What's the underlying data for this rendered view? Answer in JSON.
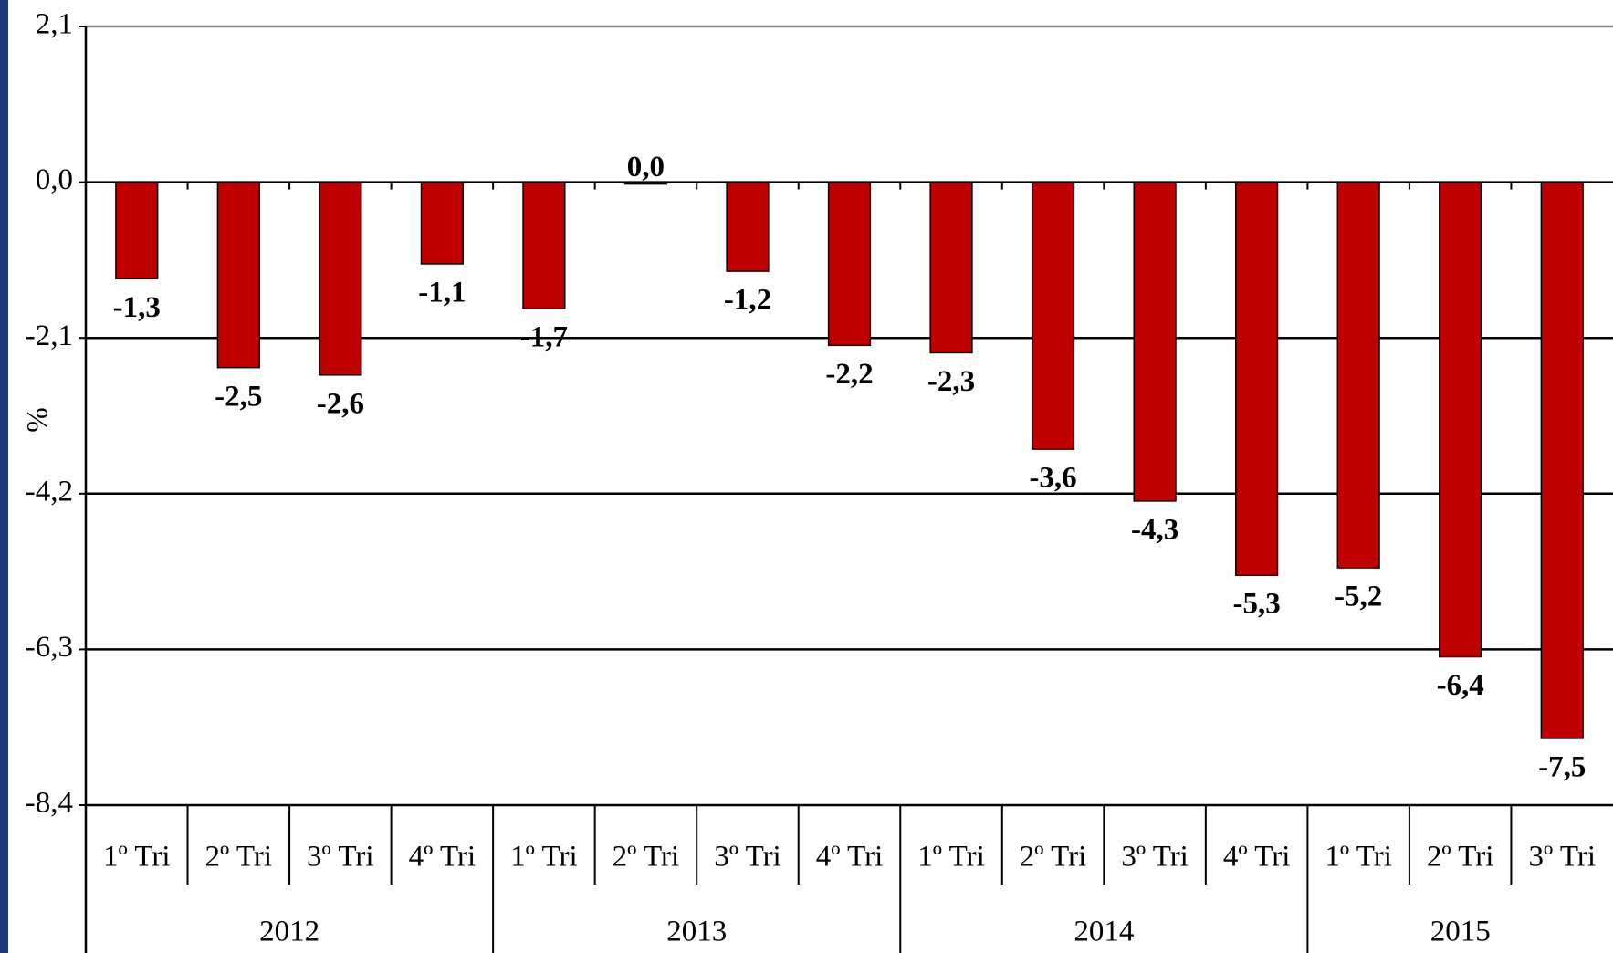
{
  "chart_data": {
    "type": "bar",
    "y_label": "%",
    "groups": [
      {
        "name": "2012",
        "categories": [
          "1º Tri",
          "2º Tri",
          "3º Tri",
          "4º Tri"
        ]
      },
      {
        "name": "2013",
        "categories": [
          "1º Tri",
          "2º Tri",
          "3º Tri",
          "4º Tri"
        ]
      },
      {
        "name": "2014",
        "categories": [
          "1º Tri",
          "2º Tri",
          "3º Tri",
          "4º Tri"
        ]
      },
      {
        "name": "2015",
        "categories": [
          "1º Tri",
          "2º Tri",
          "3º Tri"
        ]
      }
    ],
    "values": [
      -1.3,
      -2.5,
      -2.6,
      -1.1,
      -1.7,
      0.0,
      -1.2,
      -2.2,
      -2.3,
      -3.6,
      -4.3,
      -5.3,
      -5.2,
      -6.4,
      -7.5
    ],
    "value_labels": [
      "-1,3",
      "-2,5",
      "-2,6",
      "-1,1",
      "-1,7",
      "0,0",
      "-1,2",
      "-2,2",
      "-2,3",
      "-3,6",
      "-4,3",
      "-5,3",
      "-5,2",
      "-6,4",
      "-7,5"
    ],
    "color": "#c00000",
    "ylim": [
      -8.4,
      2.1
    ],
    "yticks": [
      {
        "value": 2.1,
        "label": "2,1"
      },
      {
        "value": 0.0,
        "label": "0,0"
      },
      {
        "value": -2.1,
        "label": "-2,1"
      },
      {
        "value": -4.2,
        "label": "-4,2"
      },
      {
        "value": -6.3,
        "label": "-6,3"
      },
      {
        "value": -8.4,
        "label": "-8,4"
      }
    ],
    "grid": true
  }
}
